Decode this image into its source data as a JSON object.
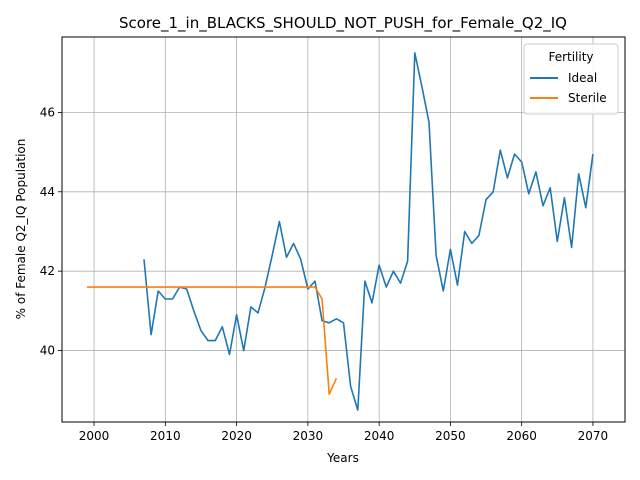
{
  "chart_data": {
    "type": "line",
    "title": "Score_1_in_BLACKS_SHOULD_NOT_PUSH_for_Female_Q2_IQ",
    "xlabel": "Years",
    "ylabel": "% of Female Q2_IQ Population",
    "xlim": [
      1995.5,
      2074.5
    ],
    "ylim": [
      38.2,
      47.9
    ],
    "xticks": [
      2000,
      2010,
      2020,
      2030,
      2040,
      2050,
      2060,
      2070
    ],
    "yticks": [
      40,
      42,
      44,
      46
    ],
    "grid": true,
    "legend": {
      "title": "Fertility",
      "placement": "top-right"
    },
    "series": [
      {
        "name": "Ideal",
        "color": "#1f77b4",
        "x": [
          2007,
          2008,
          2009,
          2010,
          2011,
          2012,
          2013,
          2014,
          2015,
          2016,
          2017,
          2018,
          2019,
          2020,
          2021,
          2022,
          2023,
          2024,
          2025,
          2026,
          2027,
          2028,
          2029,
          2030,
          2031,
          2032,
          2033,
          2034,
          2035,
          2036,
          2037,
          2038,
          2039,
          2040,
          2041,
          2042,
          2043,
          2044,
          2045,
          2046,
          2047,
          2048,
          2049,
          2050,
          2051,
          2052,
          2053,
          2054,
          2055,
          2056,
          2057,
          2058,
          2059,
          2060,
          2061,
          2062,
          2063,
          2064,
          2065,
          2066,
          2067,
          2068,
          2069,
          2070
        ],
        "y": [
          42.3,
          40.4,
          41.5,
          41.3,
          41.3,
          41.6,
          41.55,
          41.0,
          40.5,
          40.25,
          40.25,
          40.6,
          39.9,
          40.9,
          40.0,
          41.1,
          40.95,
          41.6,
          42.4,
          43.25,
          42.35,
          42.7,
          42.3,
          41.55,
          41.75,
          40.75,
          40.7,
          40.8,
          40.7,
          39.1,
          38.5,
          41.75,
          41.2,
          42.15,
          41.6,
          42.0,
          41.7,
          42.25,
          47.5,
          46.65,
          45.75,
          42.4,
          41.5,
          42.55,
          41.65,
          43.0,
          42.7,
          42.9,
          43.8,
          44.0,
          45.05,
          44.35,
          44.95,
          44.75,
          43.95,
          44.5,
          43.65,
          44.1,
          42.75,
          43.85,
          42.6,
          44.45,
          43.6,
          44.95
        ]
      },
      {
        "name": "Sterile",
        "color": "#ff7f0e",
        "x": [
          1999,
          2000,
          2001,
          2002,
          2003,
          2004,
          2005,
          2006,
          2007,
          2008,
          2009,
          2010,
          2011,
          2012,
          2013,
          2014,
          2015,
          2016,
          2017,
          2018,
          2019,
          2020,
          2021,
          2022,
          2023,
          2024,
          2025,
          2026,
          2027,
          2028,
          2029,
          2030,
          2031,
          2032,
          2033,
          2034
        ],
        "y": [
          41.6,
          41.6,
          41.6,
          41.6,
          41.6,
          41.6,
          41.6,
          41.6,
          41.6,
          41.6,
          41.6,
          41.6,
          41.6,
          41.6,
          41.6,
          41.6,
          41.6,
          41.6,
          41.6,
          41.6,
          41.6,
          41.6,
          41.6,
          41.6,
          41.6,
          41.6,
          41.6,
          41.6,
          41.6,
          41.6,
          41.6,
          41.6,
          41.6,
          41.3,
          38.9,
          39.3
        ]
      }
    ]
  }
}
